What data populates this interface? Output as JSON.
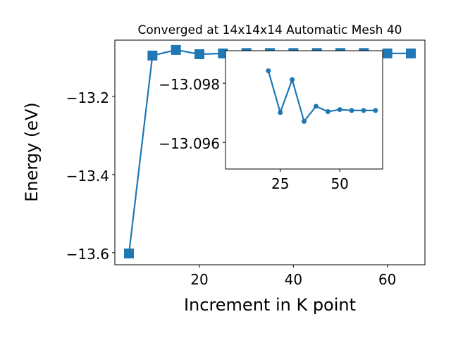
{
  "chart_data": [
    {
      "type": "line",
      "title": "Converged at 14x14x14 Automatic Mesh 40",
      "xlabel": "Increment in K point",
      "ylabel": "Energy (eV)",
      "x": [
        5,
        10,
        15,
        20,
        25,
        30,
        35,
        40,
        45,
        50,
        55,
        60,
        65
      ],
      "series": [
        {
          "color": "#1f77b4",
          "marker": "square",
          "values": [
            -13.602,
            -13.0955,
            -13.081,
            -13.092,
            -13.09,
            -13.089,
            -13.089,
            -13.089,
            -13.089,
            -13.089,
            -13.089,
            -13.09,
            -13.09
          ]
        }
      ],
      "xlim": [
        2,
        68
      ],
      "xticks": [
        20,
        40,
        60
      ],
      "ylim": [
        -13.631,
        -13.056
      ],
      "yticks": [
        {
          "value": -13.2,
          "label": "−13.2"
        },
        {
          "value": -13.4,
          "label": "−13.4"
        },
        {
          "value": -13.6,
          "label": "−13.6"
        }
      ]
    },
    {
      "type": "line",
      "x": [
        20,
        25,
        30,
        35,
        40,
        45,
        50,
        55,
        60,
        65
      ],
      "series": [
        {
          "color": "#1f77b4",
          "marker": "circle",
          "values": [
            -13.09842,
            -13.09701,
            -13.09812,
            -13.09671,
            -13.09722,
            -13.09704,
            -13.09711,
            -13.09708,
            -13.09708,
            -13.09708
          ]
        }
      ],
      "xlim": [
        2,
        68
      ],
      "xticks": [
        25,
        50
      ],
      "ylim": [
        -13.0951,
        -13.0991
      ],
      "yticks": [
        {
          "value": -13.098,
          "label": "−13.098"
        },
        {
          "value": -13.096,
          "label": "−13.096"
        }
      ]
    }
  ]
}
